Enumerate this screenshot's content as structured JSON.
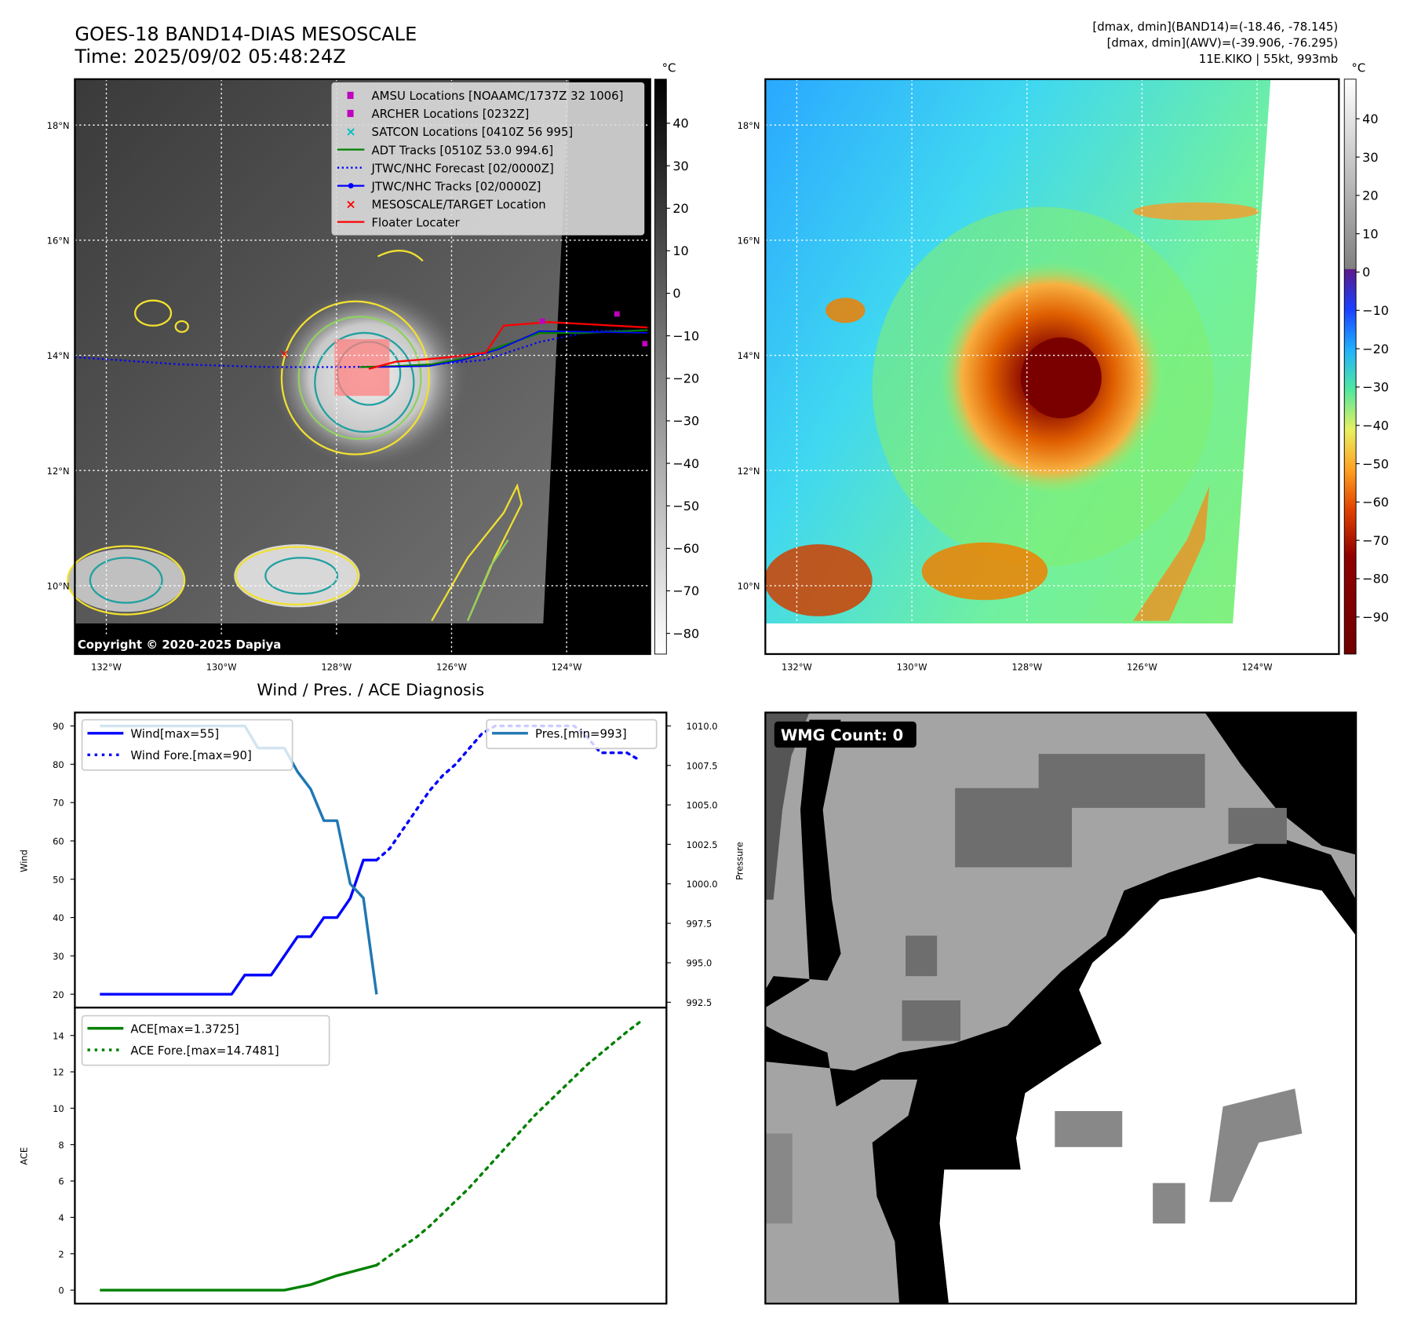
{
  "header": {
    "title": "GOES-18 BAND14-DIAS MESOSCALE",
    "time": "Time: 2025/09/02 05:48:24Z",
    "stats_line1": "[dmax, dmin](BAND14)=(-18.46, -78.145)",
    "stats_line2": "[dmax, dmin](AWV)=(-39.906, -76.295)",
    "storm_line": "11E.KIKO | 55kt, 993mb"
  },
  "map_left": {
    "lat_labels": [
      "18°N",
      "16°N",
      "14°N",
      "12°N",
      "10°N"
    ],
    "lon_labels": [
      "132°W",
      "130°W",
      "128°W",
      "126°W",
      "124°W"
    ],
    "colorbar_unit": "°C",
    "colorbar_ticks": [
      "40",
      "30",
      "20",
      "10",
      "0",
      "−10",
      "−20",
      "−30",
      "−40",
      "−50",
      "−60",
      "−70",
      "−80"
    ],
    "copyright": "Copyright © 2020-2025 Dapiya",
    "legend": [
      {
        "label": "AMSU Locations [NOAAMC/1737Z 32 1006]",
        "icon": "square-marker",
        "color": "#bf00bf"
      },
      {
        "label": "ARCHER Locations [0232Z]",
        "icon": "square-marker",
        "color": "#bf00bf"
      },
      {
        "label": "SATCON Locations [0410Z 56 995]",
        "icon": "x-marker",
        "color": "#00bfbf"
      },
      {
        "label": "ADT Tracks [0510Z 53.0 994.6]",
        "icon": "solid-line",
        "color": "#008000"
      },
      {
        "label": "JTWC/NHC Forecast [02/0000Z]",
        "icon": "dotted-line",
        "color": "#0000ff"
      },
      {
        "label": "JTWC/NHC Tracks [02/0000Z]",
        "icon": "line-dot",
        "color": "#0000ff"
      },
      {
        "label": "MESOSCALE/TARGET Location",
        "icon": "x-marker",
        "color": "#ff0000"
      },
      {
        "label": "Floater Locater",
        "icon": "solid-line",
        "color": "#ff0000"
      }
    ]
  },
  "map_right": {
    "lat_labels": [
      "18°N",
      "16°N",
      "14°N",
      "12°N",
      "10°N"
    ],
    "lon_labels": [
      "132°W",
      "130°W",
      "128°W",
      "126°W",
      "124°W"
    ],
    "colorbar_unit": "°C",
    "colorbar_ticks": [
      "40",
      "30",
      "20",
      "10",
      "0",
      "−10",
      "−20",
      "−30",
      "−40",
      "−50",
      "−60",
      "−70",
      "−80",
      "−90"
    ]
  },
  "wmg": {
    "label": "WMG Count: 0"
  },
  "chart_data": [
    {
      "type": "line",
      "title": "Wind / Pres. / ACE Diagnosis",
      "ylabel": "Wind",
      "y2label": "Pressure",
      "xlim": [
        -1.9,
        43
      ],
      "ylim": [
        16.5,
        93.5
      ],
      "y2lim": [
        992.16,
        1010.85
      ],
      "yticks": [
        20,
        30,
        40,
        50,
        60,
        70,
        80,
        90
      ],
      "y2ticks": [
        "992.5",
        "995.0",
        "997.5",
        "1000.0",
        "1002.5",
        "1005.0",
        "1007.5",
        "1010.0"
      ],
      "series": [
        {
          "name": "Wind[max=55]",
          "style": "solid",
          "color": "#0000ff",
          "axis": "left",
          "x": [
            0,
            1,
            2,
            3,
            4,
            5,
            6,
            7,
            8,
            9,
            10,
            11,
            12,
            13,
            14,
            15,
            16,
            17,
            18,
            19,
            20,
            21
          ],
          "values": [
            20,
            20,
            20,
            20,
            20,
            20,
            20,
            20,
            20,
            20,
            20,
            25,
            25,
            25,
            30,
            35,
            35,
            40,
            40,
            45,
            55,
            55
          ]
        },
        {
          "name": "Wind Fore.[max=90]",
          "style": "dotted",
          "color": "#0000ff",
          "axis": "left",
          "x": [
            21,
            22,
            23,
            24,
            25,
            26,
            27,
            28,
            29,
            30,
            31,
            32,
            33,
            34,
            35,
            36,
            37,
            38,
            39,
            40,
            41
          ],
          "values": [
            55,
            58,
            63,
            68,
            73,
            77,
            80,
            84,
            88,
            90,
            90,
            90,
            90,
            90,
            90,
            90,
            87,
            83,
            83,
            83,
            81
          ]
        },
        {
          "name": "Pres.[min=993]",
          "style": "solid",
          "color": "#1f77b4",
          "axis": "right",
          "x": [
            0,
            1,
            2,
            3,
            4,
            5,
            6,
            7,
            8,
            9,
            10,
            11,
            12,
            13,
            14,
            15,
            16,
            17,
            18,
            19,
            20,
            21
          ],
          "values": [
            1010,
            1010,
            1010,
            1010,
            1010,
            1010,
            1010,
            1010,
            1010,
            1010,
            1010,
            1010,
            1008.6,
            1008.6,
            1008.6,
            1007.1,
            1006.0,
            1004.0,
            1004.0,
            1000.0,
            999.1,
            993.0
          ]
        }
      ]
    },
    {
      "type": "line",
      "ylabel": "ACE",
      "xlim": [
        -1.9,
        43
      ],
      "ylim": [
        -0.74,
        15.53
      ],
      "yticks": [
        0,
        2,
        4,
        6,
        8,
        10,
        12,
        14
      ],
      "series": [
        {
          "name": "ACE[max=1.3725]",
          "style": "solid",
          "color": "#008000",
          "x": [
            0,
            2,
            4,
            6,
            8,
            10,
            12,
            14,
            16,
            18,
            21
          ],
          "values": [
            0,
            0,
            0,
            0,
            0,
            0,
            0,
            0,
            0.3,
            0.8,
            1.3725
          ]
        },
        {
          "name": "ACE Fore.[max=14.7481]",
          "style": "dotted",
          "color": "#008000",
          "x": [
            21,
            22,
            23,
            24,
            25,
            26,
            27,
            28,
            29,
            30,
            31,
            32,
            33,
            34,
            35,
            36,
            37,
            38,
            39,
            40,
            41
          ],
          "values": [
            1.37,
            1.9,
            2.4,
            2.9,
            3.5,
            4.2,
            4.9,
            5.6,
            6.4,
            7.2,
            8.0,
            8.8,
            9.6,
            10.3,
            11.0,
            11.7,
            12.4,
            13.0,
            13.6,
            14.2,
            14.7481
          ]
        }
      ]
    }
  ]
}
